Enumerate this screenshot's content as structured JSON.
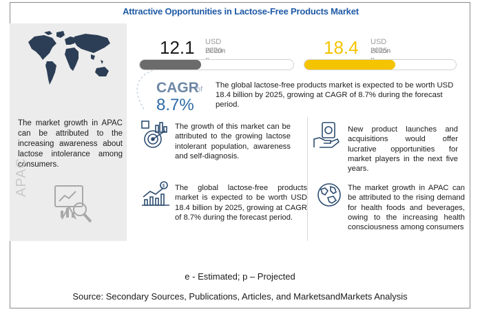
{
  "title": "Attractive Opportunities in Lactose-Free Products Market",
  "left_panel": {
    "apac_text": "The market growth in APAC can be attributed to the increasing awareness about lactose intolerance among consumers.",
    "region_label": "APAC",
    "icons": [
      "world-map-icon",
      "analysis-chart-icon"
    ]
  },
  "stats": {
    "y2020": {
      "value": "12.1",
      "unit": "USD Billion",
      "year": "2020-e",
      "fill_fraction": 0.4,
      "color": "#6b6b6b"
    },
    "y2025": {
      "value": "18.4",
      "unit": "USD Billion",
      "year": "2025-p",
      "fill_fraction": 0.6,
      "color": "#f5c400"
    }
  },
  "cagr": {
    "label": "CAGR",
    "of": "of",
    "value": "8.7%"
  },
  "summary": "The global lactose-free products market is expected to be worth USD 18.4 billion by 2025, growing at CAGR of 8.7% during the forecast period.",
  "highlights": [
    {
      "icon": "target-growth-icon",
      "text": "The growth of this market can be attributed to the growing lactose intolerant population, awareness and self-diagnosis."
    },
    {
      "icon": "hand-money-icon",
      "text": "New product launches and acquisitions would offer lucrative opportunities for market players in the next five years."
    },
    {
      "icon": "bar-chart-dollar-icon",
      "text": "The global lactose-free products market is expected to be worth USD 18.4 billion by 2025, growing at CAGR of 8.7% during the forecast period."
    },
    {
      "icon": "globe-icon",
      "text": "The market growth in APAC can be attributed to the rising demand for health foods and beverages, owing to the increasing health consciousness among consumers"
    }
  ],
  "footnote": "e - Estimated; p – Projected",
  "source": "Source: Secondary Sources, Publications, Articles, and MarketsandMarkets Analysis",
  "colors": {
    "title": "#1f5aa6",
    "accent_yellow": "#f5c400",
    "gray_bar": "#6b6b6b",
    "cagr_blue": "#2b6aa4"
  }
}
